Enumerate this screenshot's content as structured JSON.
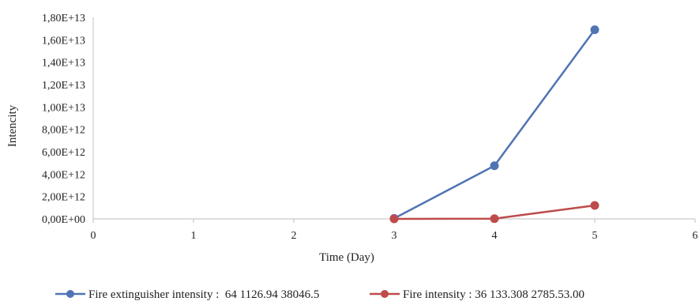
{
  "chart_data": {
    "type": "line",
    "title": "",
    "xlabel": "Time (Day)",
    "ylabel": "Intencity",
    "xlim": [
      0,
      6
    ],
    "ylim": [
      0,
      18000000000000
    ],
    "x_ticks": [
      0,
      1,
      2,
      3,
      4,
      5,
      6
    ],
    "x_tick_labels": [
      "0",
      "1",
      "2",
      "3",
      "4",
      "5",
      "6"
    ],
    "y_ticks": [
      0,
      2000000000000,
      4000000000000,
      6000000000000,
      8000000000000,
      10000000000000,
      12000000000000,
      14000000000000,
      16000000000000,
      18000000000000
    ],
    "y_tick_labels": [
      "0,00E+00",
      "2,00E+12",
      "4,00E+12",
      "6,00E+12",
      "8,00E+12",
      "1,00E+13",
      "1,20E+13",
      "1,40E+13",
      "1,60E+13",
      "1,80E+13"
    ],
    "grid": false,
    "legend_position": "bottom",
    "series": [
      {
        "name": "Fire extinguisher intensity :  64 1126.94 38046.5",
        "color": "#4F74B4",
        "x": [
          3,
          4,
          5
        ],
        "y": [
          40000000000,
          4750000000000,
          16900000000000
        ]
      },
      {
        "name": "Fire intensity : 36 133.308 2785.53.00",
        "color": "#BE4B4B",
        "x": [
          3,
          4,
          5
        ],
        "y": [
          0,
          20000000000,
          1200000000000
        ]
      }
    ]
  }
}
